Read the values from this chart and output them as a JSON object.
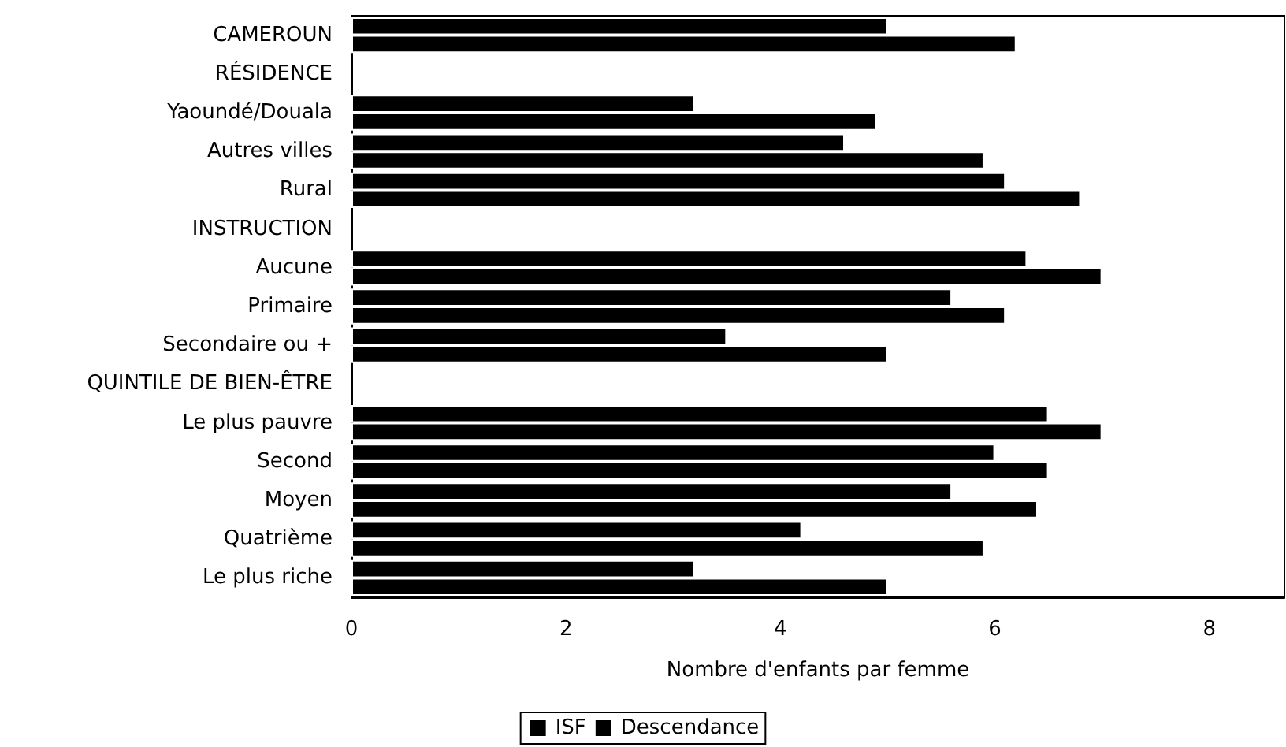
{
  "chart_data": {
    "type": "bar",
    "orientation": "horizontal",
    "xlabel": "Nombre d'enfants par femme",
    "categories": [
      "CAMEROUN",
      "RÉSIDENCE",
      "Yaoundé/Douala",
      "Autres villes",
      "Rural",
      "INSTRUCTION",
      "Aucune",
      "Primaire",
      "Secondaire ou +",
      "QUINTILE DE BIEN-ÊTRE",
      "Le plus pauvre",
      "Second",
      "Moyen",
      "Quatrième",
      "Le plus riche"
    ],
    "series": [
      {
        "name": "ISF",
        "color": "#000000",
        "values": [
          5.0,
          null,
          3.2,
          4.6,
          6.1,
          null,
          6.3,
          5.6,
          3.5,
          null,
          6.5,
          6.0,
          5.6,
          4.2,
          3.2
        ]
      },
      {
        "name": "Descendance",
        "color": "#000000",
        "values": [
          6.2,
          null,
          4.9,
          5.9,
          6.8,
          null,
          7.0,
          6.1,
          5.0,
          null,
          7.0,
          6.5,
          6.4,
          5.9,
          5.0
        ]
      }
    ],
    "xlim": [
      0,
      8.7
    ],
    "xticks": [
      0,
      2,
      4,
      6,
      8
    ],
    "grid": false,
    "legend": "bottom"
  }
}
